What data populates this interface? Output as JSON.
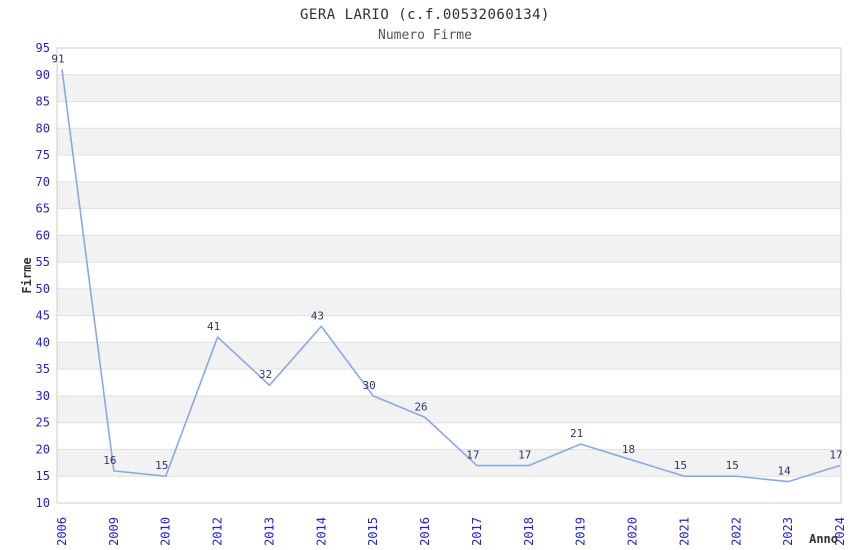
{
  "header": {
    "title": "GERA LARIO (c.f.00532060134)",
    "subtitle": "Numero Firme"
  },
  "chart_data": {
    "type": "line",
    "title": "GERA LARIO (c.f.00532060134)",
    "subtitle": "Numero Firme",
    "xlabel": "Anno",
    "ylabel": "Firme",
    "categories": [
      "2006",
      "2009",
      "2010",
      "2012",
      "2013",
      "2014",
      "2015",
      "2016",
      "2017",
      "2018",
      "2019",
      "2020",
      "2021",
      "2022",
      "2023",
      "2024"
    ],
    "values": [
      91,
      16,
      15,
      41,
      32,
      43,
      30,
      26,
      17,
      17,
      21,
      18,
      15,
      15,
      14,
      17
    ],
    "ylim": [
      10,
      95
    ],
    "ytick_step": 5,
    "grid": "horizontal-alternating-bands",
    "legend_position": "none",
    "data_labels_shown": true,
    "colors": {
      "line": "#85ABE4",
      "tick_label": "#2222CC",
      "data_label": "#333366",
      "band_fill": "#F2F2F2",
      "gridline": "#E0E0E0",
      "plot_border": "#CCCCCC",
      "plot_background": "#FFFFFF",
      "title_text": "#2F2F2F",
      "subtitle_text": "#555555",
      "axis_label_text": "#333333"
    }
  }
}
